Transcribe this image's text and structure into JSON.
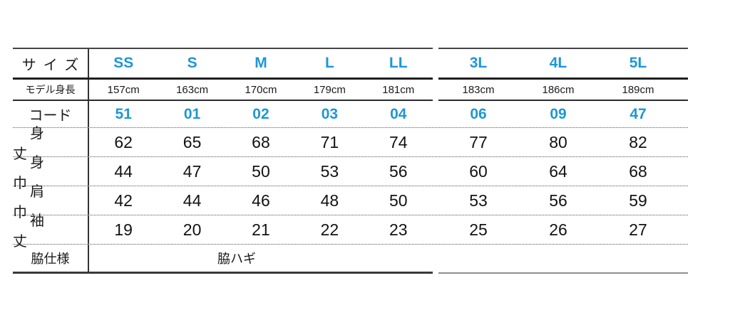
{
  "size_chart": {
    "sizes_row": {
      "label": "サイズ",
      "values": [
        "SS",
        "S",
        "M",
        "L",
        "LL",
        "3L",
        "4L",
        "5L"
      ]
    },
    "model_height_row": {
      "label": "モデル身長",
      "values": [
        "157cm",
        "163cm",
        "170cm",
        "179cm",
        "181cm",
        "183cm",
        "186cm",
        "189cm"
      ]
    },
    "code_row": {
      "label": "コード",
      "values": [
        "51",
        "01",
        "02",
        "03",
        "04",
        "06",
        "09",
        "47"
      ]
    },
    "measurement_rows": [
      {
        "label": "身丈",
        "values": [
          "62",
          "65",
          "68",
          "71",
          "74",
          "77",
          "80",
          "82"
        ]
      },
      {
        "label": "身巾",
        "values": [
          "44",
          "47",
          "50",
          "53",
          "56",
          "60",
          "64",
          "68"
        ]
      },
      {
        "label": "肩巾",
        "values": [
          "42",
          "44",
          "46",
          "48",
          "50",
          "53",
          "56",
          "59"
        ]
      },
      {
        "label": "袖丈",
        "values": [
          "19",
          "20",
          "21",
          "22",
          "23",
          "25",
          "26",
          "27"
        ]
      }
    ],
    "side_spec_row": {
      "label": "脇仕様",
      "value": "脇ハギ"
    },
    "colors": {
      "accent_blue": "#1e97d4",
      "text_black": "#1a1a1a"
    }
  }
}
